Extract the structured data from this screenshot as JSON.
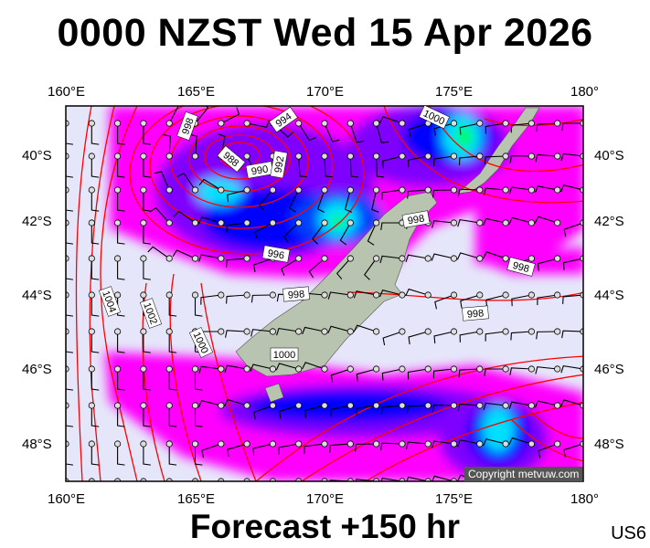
{
  "header": {
    "title": "0000 NZST Wed 15 Apr 2026"
  },
  "footer": {
    "forecast": "Forecast +150 hr",
    "model_code": "US6",
    "copyright": "Copyright metvuw.com"
  },
  "axes": {
    "top_lon": [
      "160°E",
      "165°E",
      "170°E",
      "175°E",
      "180°"
    ],
    "bottom_lon": [
      "160°E",
      "165°E",
      "170°E",
      "175°E",
      "180°"
    ],
    "left_lat": [
      "40°S",
      "42°S",
      "44°S",
      "46°S",
      "48°S"
    ],
    "right_lat": [
      "40°S",
      "42°S",
      "44°S",
      "46°S",
      "48°S"
    ]
  },
  "isobar_labels": [
    "998",
    "994",
    "988",
    "990",
    "992",
    "1000",
    "996",
    "998",
    "998",
    "998",
    "1004",
    "1002",
    "1000",
    "1000",
    "998"
  ],
  "colors": {
    "background": "#e6e6fa",
    "isobar": "#ff0000",
    "precip_light": "#ff00ff",
    "precip_mid": "#8000ff",
    "precip_heavy": "#0000ff",
    "precip_very_heavy": "#00e0ff",
    "precip_extreme": "#00ff00",
    "land": "#b8c4b0"
  }
}
